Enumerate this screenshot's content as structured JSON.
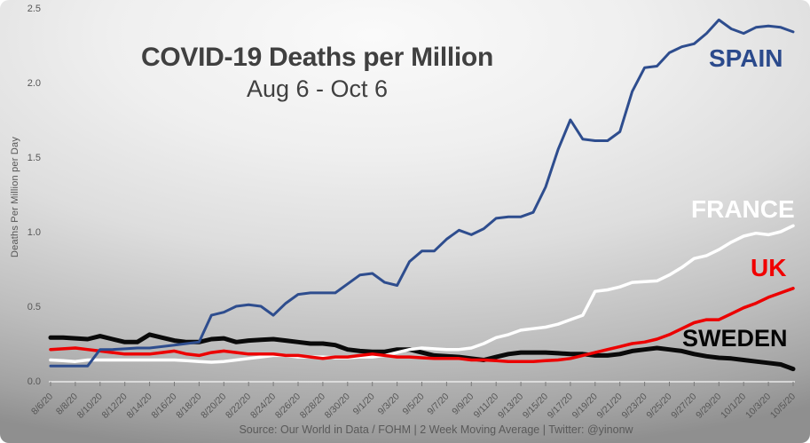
{
  "page": {
    "title": "COVID-19 Deaths per Million",
    "subtitle": "Aug 6 - Oct 6",
    "source_line": "Source: Our World in Data / FOHM | 2 Week Moving Average | Twitter: @yinonw"
  },
  "chart_data": {
    "type": "line",
    "title": "COVID-19 Deaths per Million",
    "subtitle": "Aug 6 - Oct 6",
    "xlabel": "",
    "ylabel": "Deaths Per Million per Day",
    "ylim": [
      0,
      2.5
    ],
    "y_ticks": [
      "0.0",
      "0.5",
      "1.0",
      "1.5",
      "2.0",
      "2.5"
    ],
    "x_tick_labels": [
      "8/6/20",
      "8/8/20",
      "8/10/20",
      "8/12/20",
      "8/14/20",
      "8/16/20",
      "8/18/20",
      "8/20/20",
      "8/22/20",
      "8/24/20",
      "8/26/20",
      "8/28/20",
      "8/30/20",
      "9/1/20",
      "9/3/20",
      "9/5/20",
      "9/7/20",
      "9/9/20",
      "9/11/20",
      "9/13/20",
      "9/15/20",
      "9/17/20",
      "9/19/20",
      "9/21/20",
      "9/23/20",
      "9/25/20",
      "9/27/20",
      "9/29/20",
      "10/1/20",
      "10/3/20",
      "10/5/20"
    ],
    "x_tick_rotation_deg": -45,
    "points_per_tick": 2,
    "grid": false,
    "legend": "inline-labels-right",
    "background": "gray-radial-gradient",
    "series": [
      {
        "name": "SWEDEN",
        "color": "#0a0a0a",
        "line_width": 5,
        "values": [
          0.29,
          0.29,
          0.285,
          0.28,
          0.3,
          0.28,
          0.26,
          0.26,
          0.31,
          0.29,
          0.27,
          0.26,
          0.26,
          0.28,
          0.285,
          0.26,
          0.27,
          0.275,
          0.28,
          0.27,
          0.26,
          0.25,
          0.25,
          0.24,
          0.21,
          0.2,
          0.195,
          0.195,
          0.21,
          0.21,
          0.19,
          0.17,
          0.165,
          0.16,
          0.15,
          0.14,
          0.16,
          0.18,
          0.19,
          0.19,
          0.19,
          0.185,
          0.18,
          0.18,
          0.17,
          0.17,
          0.18,
          0.2,
          0.21,
          0.22,
          0.21,
          0.2,
          0.18,
          0.165,
          0.155,
          0.15,
          0.14,
          0.13,
          0.12,
          0.11,
          0.08
        ]
      },
      {
        "name": "FRANCE",
        "color": "#ffffff",
        "line_width": 3.5,
        "values": [
          0.14,
          0.135,
          0.13,
          0.14,
          0.14,
          0.14,
          0.14,
          0.14,
          0.14,
          0.14,
          0.14,
          0.135,
          0.13,
          0.125,
          0.13,
          0.14,
          0.15,
          0.16,
          0.17,
          0.17,
          0.16,
          0.16,
          0.16,
          0.155,
          0.155,
          0.16,
          0.16,
          0.17,
          0.19,
          0.21,
          0.22,
          0.215,
          0.21,
          0.21,
          0.22,
          0.25,
          0.29,
          0.31,
          0.34,
          0.35,
          0.36,
          0.38,
          0.41,
          0.44,
          0.6,
          0.61,
          0.63,
          0.66,
          0.665,
          0.67,
          0.71,
          0.76,
          0.82,
          0.84,
          0.88,
          0.93,
          0.97,
          0.99,
          0.98,
          1.0,
          1.04
        ]
      },
      {
        "name": "UK",
        "color": "#ec0000",
        "line_width": 3.5,
        "values": [
          0.21,
          0.215,
          0.22,
          0.21,
          0.2,
          0.19,
          0.18,
          0.18,
          0.18,
          0.19,
          0.2,
          0.18,
          0.17,
          0.19,
          0.2,
          0.19,
          0.18,
          0.18,
          0.18,
          0.17,
          0.17,
          0.16,
          0.15,
          0.16,
          0.16,
          0.17,
          0.18,
          0.17,
          0.16,
          0.16,
          0.155,
          0.15,
          0.15,
          0.15,
          0.14,
          0.14,
          0.135,
          0.13,
          0.13,
          0.13,
          0.135,
          0.14,
          0.15,
          0.17,
          0.19,
          0.21,
          0.23,
          0.25,
          0.26,
          0.28,
          0.31,
          0.35,
          0.39,
          0.41,
          0.41,
          0.45,
          0.49,
          0.52,
          0.56,
          0.59,
          0.62
        ]
      },
      {
        "name": "SPAIN",
        "color": "#2e4d8e",
        "line_width": 3,
        "values": [
          0.1,
          0.1,
          0.1,
          0.1,
          0.21,
          0.21,
          0.215,
          0.22,
          0.22,
          0.23,
          0.24,
          0.25,
          0.26,
          0.44,
          0.46,
          0.5,
          0.51,
          0.5,
          0.44,
          0.52,
          0.58,
          0.59,
          0.59,
          0.59,
          0.65,
          0.71,
          0.72,
          0.66,
          0.64,
          0.8,
          0.87,
          0.87,
          0.95,
          1.01,
          0.98,
          1.02,
          1.09,
          1.1,
          1.1,
          1.13,
          1.3,
          1.55,
          1.75,
          1.62,
          1.61,
          1.61,
          1.67,
          1.94,
          2.1,
          2.11,
          2.2,
          2.24,
          2.26,
          2.33,
          2.42,
          2.36,
          2.33,
          2.37,
          2.38,
          2.37,
          2.34
        ]
      }
    ]
  }
}
